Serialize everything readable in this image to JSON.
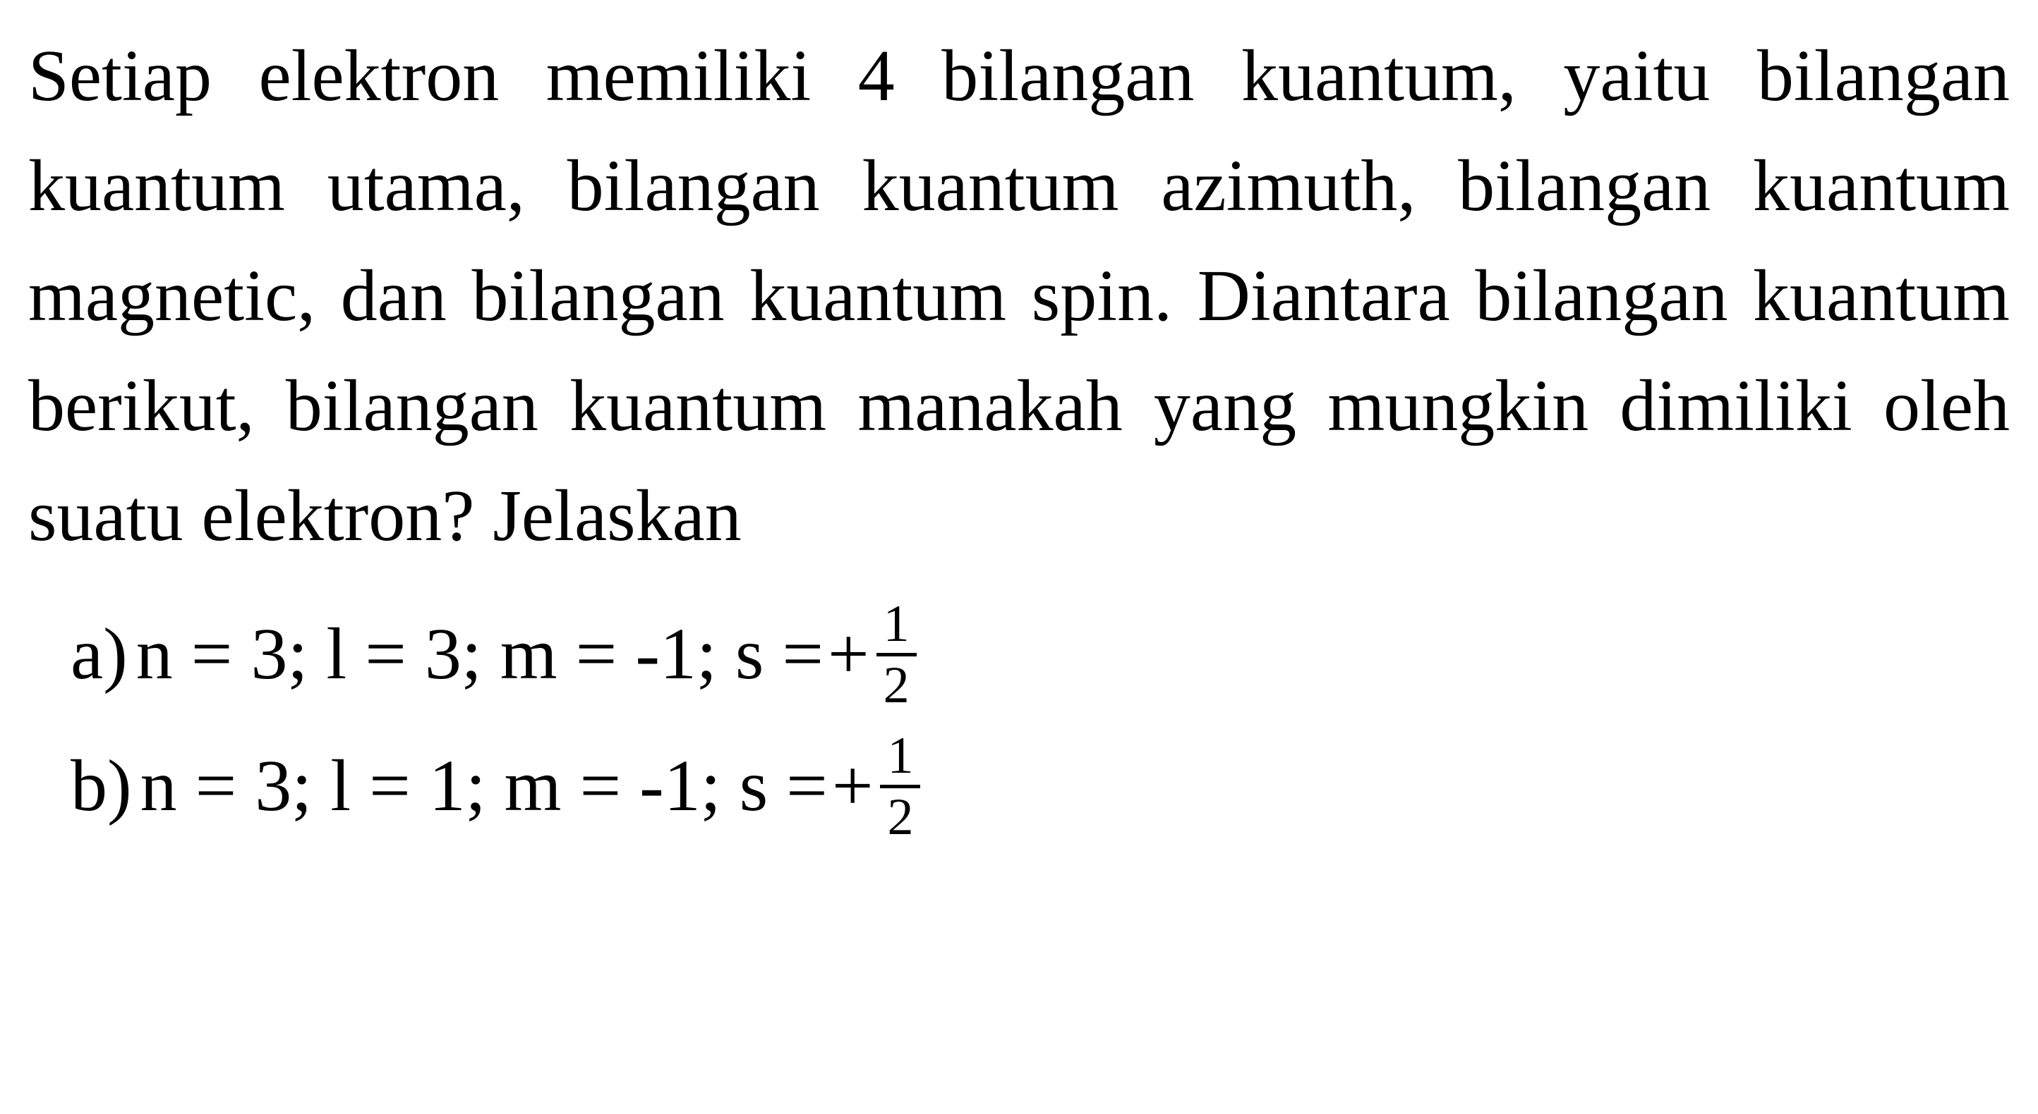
{
  "paragraph": {
    "text": "Setiap elektron memiliki 4 bilangan kuantum, yaitu bilangan kuantum utama, bilangan kuantum azimuth, bilangan kuantum magnetic, dan bilangan kuantum spin. Diantara bilangan kuantum berikut, bilangan kuantum manakah yang mungkin dimiliki oleh suatu elektron? Jelaskan"
  },
  "options": {
    "a": {
      "label": "a)",
      "equation_prefix": "n = 3; l = 3; m = -1; s = ",
      "plus": "+",
      "fraction_numerator": "1",
      "fraction_denominator": "2"
    },
    "b": {
      "label": "b)",
      "equation_prefix": "n = 3; l = 1; m = -1; s = ",
      "plus": "+",
      "fraction_numerator": "1",
      "fraction_denominator": "2"
    }
  },
  "style": {
    "text_color": "#000000",
    "background_color": "#ffffff",
    "font_family": "Times New Roman",
    "paragraph_fontsize": 104,
    "option_fontsize": 104,
    "fraction_fontsize": 74
  }
}
